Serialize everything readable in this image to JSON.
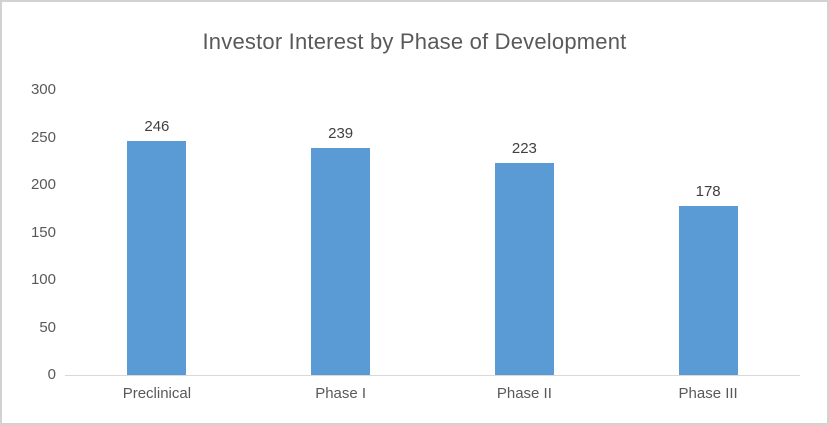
{
  "chart_data": {
    "type": "bar",
    "title": "Investor Interest by Phase of Development",
    "categories": [
      "Preclinical",
      "Phase I",
      "Phase II",
      "Phase III"
    ],
    "values": [
      246,
      239,
      223,
      178
    ],
    "data_labels": [
      "246",
      "239",
      "223",
      "178"
    ],
    "xlabel": "",
    "ylabel": "",
    "ylim": [
      0,
      300
    ],
    "yticks": [
      0,
      50,
      100,
      150,
      200,
      250,
      300
    ],
    "ytick_labels": [
      "0",
      "50",
      "100",
      "150",
      "200",
      "250",
      "300"
    ],
    "grid": false,
    "legend_position": "none",
    "colors": {
      "bar_fill": "#5B9BD5",
      "title_text": "#595959",
      "axis_tick_text": "#595959",
      "data_label_text": "#404040",
      "axis_line": "#D9D9D9",
      "chart_border": "#D2D2D2",
      "background": "#FFFFFF"
    }
  }
}
